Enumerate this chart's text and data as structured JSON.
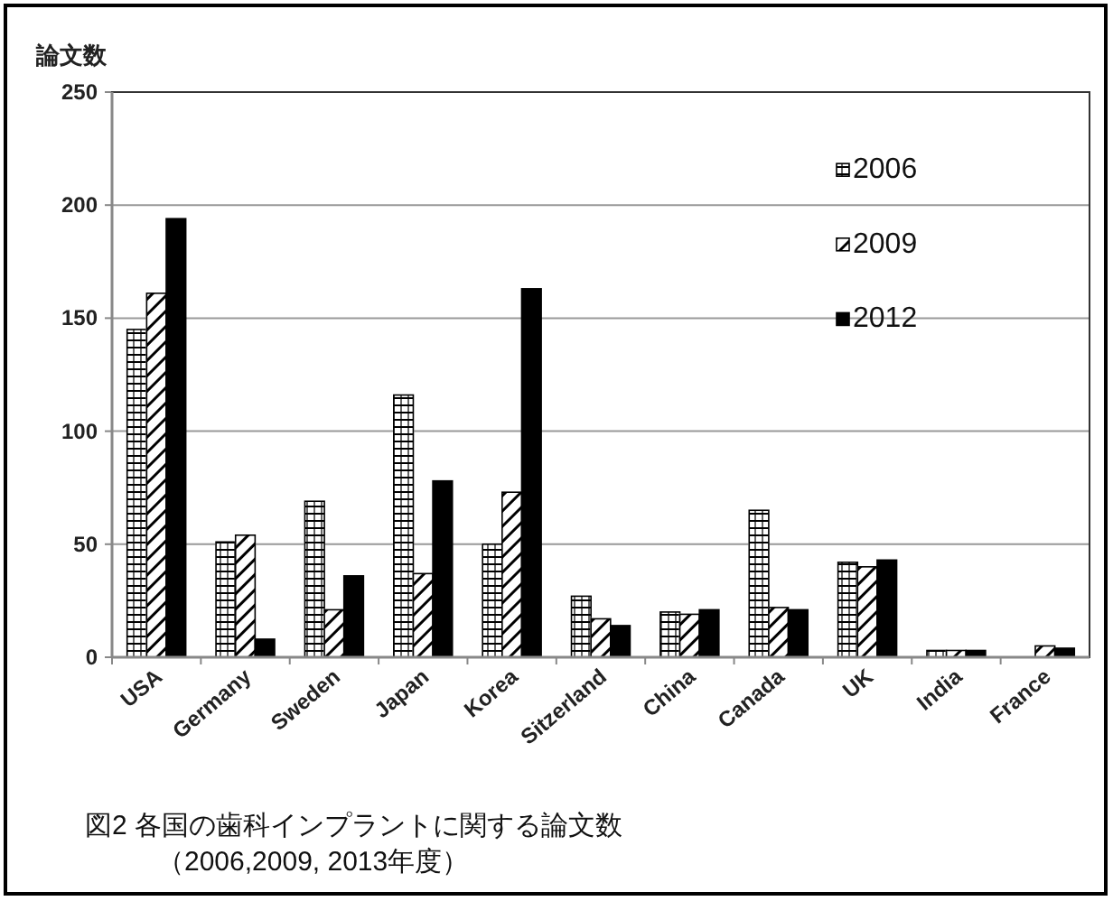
{
  "chart_data": {
    "type": "bar",
    "ylabel": "論文数",
    "categories": [
      "USA",
      "Germany",
      "Sweden",
      "Japan",
      "Korea",
      "Sitzerland",
      "China",
      "Canada",
      "UK",
      "India",
      "France"
    ],
    "series": [
      {
        "name": "2006",
        "color": "#ffffff",
        "values": [
          145,
          51,
          69,
          116,
          50,
          27,
          20,
          65,
          42,
          3,
          0
        ]
      },
      {
        "name": "2009",
        "color": "#ffffff",
        "values": [
          161,
          54,
          21,
          37,
          73,
          17,
          19,
          22,
          40,
          3,
          5
        ]
      },
      {
        "name": "2012",
        "color": "#000000",
        "values": [
          194,
          8,
          36,
          78,
          163,
          14,
          21,
          21,
          43,
          3,
          4
        ]
      }
    ],
    "ylim": [
      0,
      250
    ],
    "yticks": [
      0,
      50,
      100,
      150,
      200,
      250
    ],
    "grid": "y",
    "legend": "top right",
    "annotations": [
      "図2 各国の歯科インプラントに関する論文数",
      "（2006,2009, 2013年度）"
    ]
  }
}
